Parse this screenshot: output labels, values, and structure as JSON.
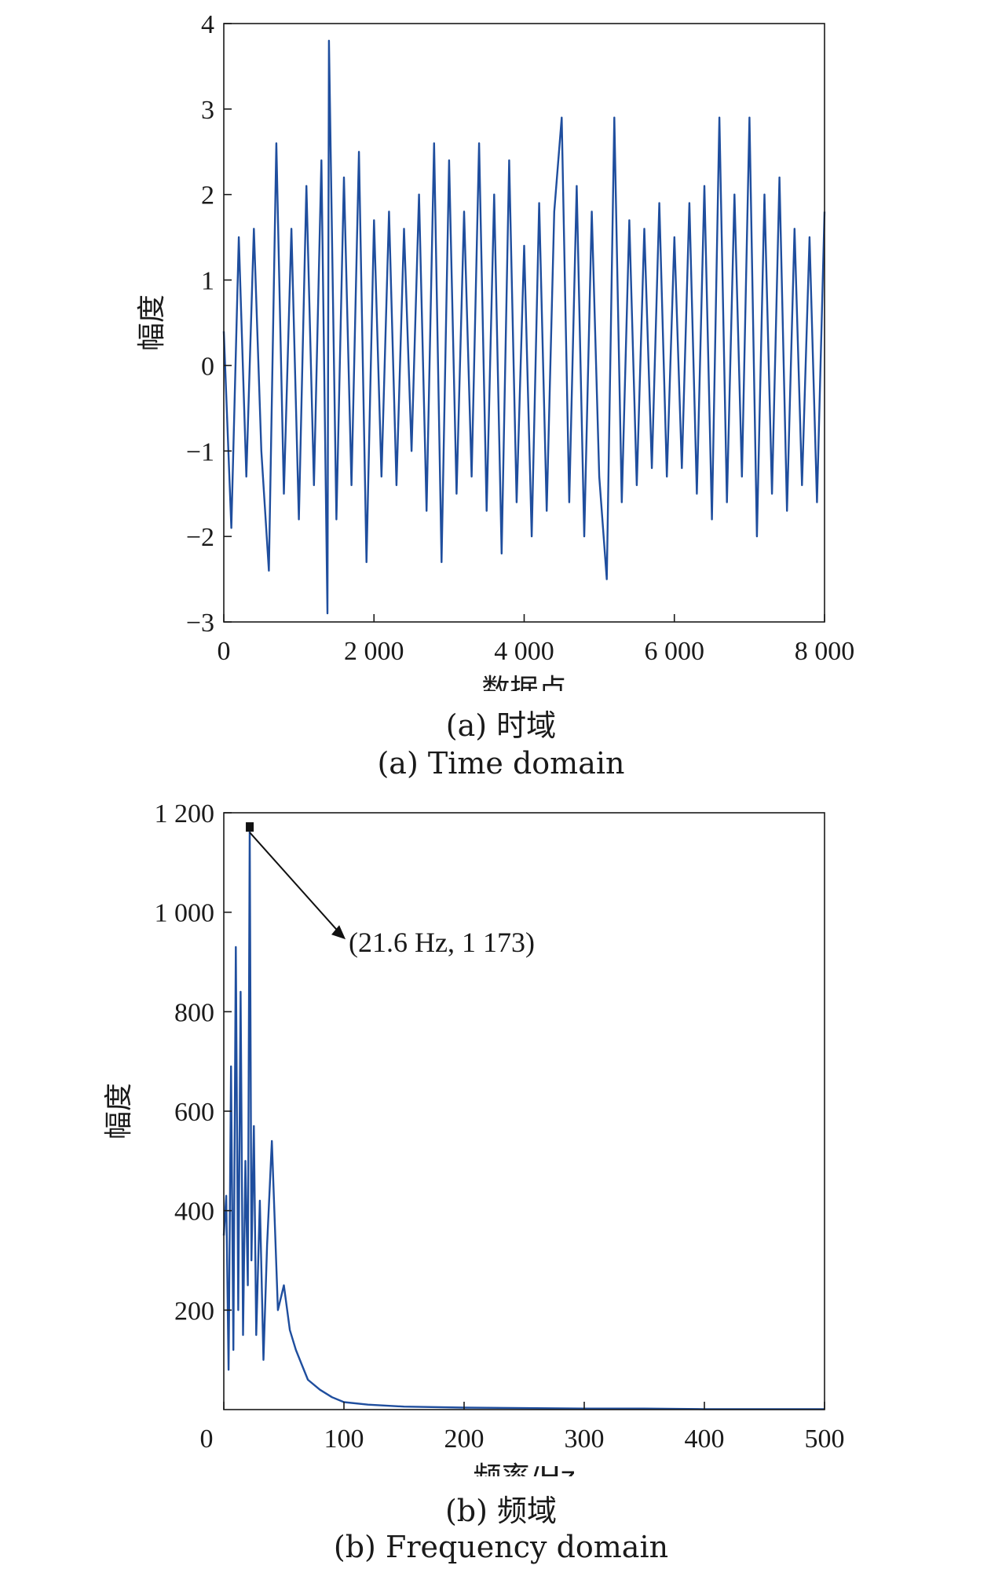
{
  "chart_data": [
    {
      "type": "line",
      "xlabel": "数据点",
      "ylabel": "幅度",
      "xlim": [
        0,
        8000
      ],
      "ylim": [
        -3,
        4
      ],
      "xticks": [
        0,
        2000,
        4000,
        6000,
        8000
      ],
      "xtick_labels": [
        "0",
        "2 000",
        "4 000",
        "6 000",
        "8 000"
      ],
      "yticks": [
        -3,
        -2,
        -1,
        0,
        1,
        2,
        3,
        4
      ],
      "ytick_labels": [
        "−3",
        "−2",
        "−1",
        "0",
        "1",
        "2",
        "3",
        "4"
      ],
      "grid": false,
      "color": "#1f4e9e",
      "series": [
        {
          "x": [
            0,
            100,
            200,
            300,
            400,
            500,
            600,
            700,
            800,
            900,
            1000,
            1100,
            1200,
            1300,
            1380,
            1400,
            1500,
            1600,
            1700,
            1800,
            1900,
            2000,
            2100,
            2200,
            2300,
            2400,
            2500,
            2600,
            2700,
            2800,
            2900,
            3000,
            3100,
            3200,
            3300,
            3400,
            3500,
            3600,
            3700,
            3800,
            3900,
            4000,
            4100,
            4200,
            4300,
            4400,
            4500,
            4600,
            4700,
            4800,
            4900,
            5000,
            5100,
            5200,
            5300,
            5400,
            5500,
            5600,
            5700,
            5800,
            5900,
            6000,
            6100,
            6200,
            6300,
            6400,
            6500,
            6600,
            6700,
            6800,
            6900,
            7000,
            7100,
            7200,
            7300,
            7400,
            7500,
            7600,
            7700,
            7800,
            7900,
            8000
          ],
          "y": [
            0.4,
            -1.9,
            1.5,
            -1.3,
            1.6,
            -1.0,
            -2.4,
            2.6,
            -1.5,
            1.6,
            -1.8,
            2.1,
            -1.4,
            2.4,
            -2.9,
            3.8,
            -1.8,
            2.2,
            -1.4,
            2.5,
            -2.3,
            1.7,
            -1.3,
            1.8,
            -1.4,
            1.6,
            -1.0,
            2.0,
            -1.7,
            2.6,
            -2.3,
            2.4,
            -1.5,
            1.8,
            -1.3,
            2.6,
            -1.7,
            2.0,
            -2.2,
            2.4,
            -1.6,
            1.4,
            -2.0,
            1.9,
            -1.7,
            1.8,
            2.9,
            -1.6,
            2.1,
            -2.0,
            1.8,
            -1.3,
            -2.5,
            2.9,
            -1.6,
            1.7,
            -1.4,
            1.6,
            -1.2,
            1.9,
            -1.3,
            1.5,
            -1.2,
            1.9,
            -1.5,
            2.1,
            -1.8,
            2.9,
            -1.6,
            2.0,
            -1.3,
            2.9,
            -2.0,
            2.0,
            -1.5,
            2.2,
            -1.7,
            1.6,
            -1.4,
            1.5,
            -1.6,
            1.8
          ]
        }
      ]
    },
    {
      "type": "line",
      "xlabel": "频率/Hz",
      "ylabel": "幅度",
      "xlim": [
        0,
        500
      ],
      "ylim": [
        0,
        1200
      ],
      "xticks": [
        0,
        100,
        200,
        300,
        400,
        500
      ],
      "xtick_labels": [
        "0",
        "100",
        "200",
        "300",
        "400",
        "500"
      ],
      "yticks": [
        200,
        400,
        600,
        800,
        1000,
        1200
      ],
      "ytick_labels": [
        "200",
        "400",
        "600",
        "800",
        "1 000",
        "1 200"
      ],
      "grid": false,
      "color": "#1f4e9e",
      "annotation": {
        "text": "(21.6 Hz, 1 173)",
        "x": 21.6,
        "y": 1173
      },
      "series": [
        {
          "x": [
            0,
            2,
            4,
            6,
            8,
            10,
            12,
            14,
            16,
            18,
            20,
            21.6,
            23,
            25,
            27,
            30,
            33,
            36,
            40,
            45,
            50,
            55,
            60,
            65,
            70,
            80,
            90,
            100,
            120,
            150,
            200,
            250,
            300,
            350,
            400,
            450,
            500
          ],
          "y": [
            350,
            430,
            80,
            690,
            120,
            930,
            200,
            840,
            150,
            500,
            250,
            1173,
            300,
            570,
            150,
            420,
            100,
            330,
            540,
            200,
            250,
            160,
            120,
            90,
            60,
            40,
            25,
            15,
            10,
            6,
            4,
            3,
            2,
            2,
            1,
            1,
            1
          ]
        }
      ]
    }
  ],
  "captions": {
    "a_cn": "(a) 时域",
    "a_en": "(a) Time domain",
    "b_cn": "(b) 频域",
    "b_en": "(b) Frequency domain"
  }
}
